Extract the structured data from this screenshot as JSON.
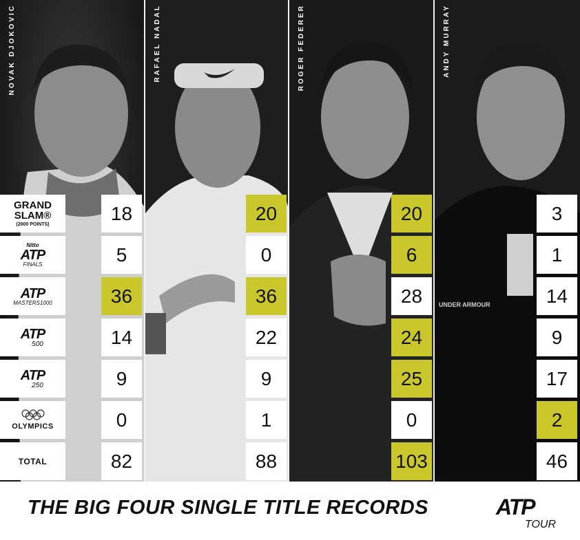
{
  "players": [
    {
      "name": "NOVAK DJOKOVIC",
      "values": [
        "18",
        "5",
        "36",
        "14",
        "9",
        "0",
        "82"
      ],
      "highlight": [
        false,
        false,
        true,
        false,
        false,
        false,
        false
      ]
    },
    {
      "name": "RAFAEL NADAL",
      "values": [
        "20",
        "0",
        "36",
        "22",
        "9",
        "1",
        "88"
      ],
      "highlight": [
        true,
        false,
        true,
        false,
        false,
        false,
        false
      ]
    },
    {
      "name": "ROGER FEDERER",
      "values": [
        "20",
        "6",
        "28",
        "24",
        "25",
        "0",
        "103"
      ],
      "highlight": [
        true,
        true,
        false,
        true,
        true,
        false,
        true
      ]
    },
    {
      "name": "ANDY MURRAY",
      "values": [
        "3",
        "1",
        "14",
        "9",
        "17",
        "2",
        "46"
      ],
      "highlight": [
        false,
        false,
        false,
        false,
        false,
        true,
        false
      ]
    }
  ],
  "labels": {
    "grand_slam_line1": "GRAND",
    "grand_slam_line2": "SLAM®",
    "grand_slam_sub": "(2000 POINTS)",
    "nitto": "Nitto",
    "atp": "ATP",
    "finals": "FINALS",
    "masters": "MASTERS1000",
    "atp500": "500",
    "atp250": "250",
    "olympics": "OLYMPICS",
    "total": "TOTAL"
  },
  "footer": {
    "title": "THE BIG FOUR SINGLE TITLE RECORDS",
    "logo_atp": "ATP",
    "logo_tour": "TOUR"
  },
  "colors": {
    "highlight": "#c9c72c",
    "background": "#161616"
  },
  "icons": [
    "atp-logo-icon",
    "olympic-rings-icon"
  ]
}
